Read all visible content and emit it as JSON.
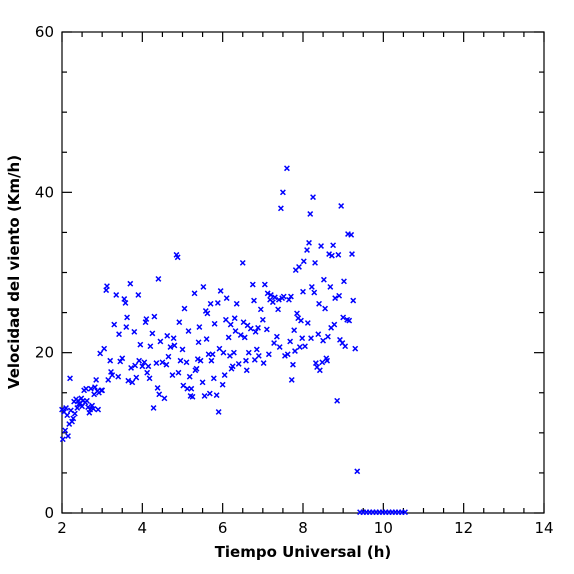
{
  "chart_data": {
    "type": "scatter",
    "xlabel": "Tiempo Universal (h)",
    "ylabel": "Velocidad del viento (Km/h)",
    "xlim": [
      2,
      14
    ],
    "ylim": [
      0,
      60
    ],
    "x_ticks": [
      2,
      4,
      6,
      8,
      10,
      12,
      14
    ],
    "y_ticks": [
      0,
      20,
      40,
      60
    ],
    "x_tick_labels": [
      "2",
      "4",
      "6",
      "8",
      "10",
      "12",
      "14"
    ],
    "y_tick_labels": [
      "0",
      "20",
      "40",
      "60"
    ],
    "grid": false,
    "marker": "x",
    "color": "#0000ff",
    "series": [
      {
        "points": [
          [
            2.0,
            12.9
          ],
          [
            2.02,
            9.2
          ],
          [
            2.05,
            12.6
          ],
          [
            2.08,
            10.3
          ],
          [
            2.1,
            13.1
          ],
          [
            2.13,
            12.2
          ],
          [
            2.15,
            9.6
          ],
          [
            2.18,
            11.1
          ],
          [
            2.2,
            16.8
          ],
          [
            2.22,
            12.8
          ],
          [
            2.25,
            11.4
          ],
          [
            2.28,
            11.8
          ],
          [
            2.3,
            13.9
          ],
          [
            2.32,
            12.4
          ],
          [
            2.35,
            14.2
          ],
          [
            2.38,
            13.1
          ],
          [
            2.4,
            14.0
          ],
          [
            2.42,
            13.6
          ],
          [
            2.45,
            13.7
          ],
          [
            2.48,
            14.3
          ],
          [
            2.5,
            13.3
          ],
          [
            2.52,
            14.0
          ],
          [
            2.55,
            15.3
          ],
          [
            2.58,
            13.8
          ],
          [
            2.6,
            15.5
          ],
          [
            2.62,
            14.0
          ],
          [
            2.65,
            13.2
          ],
          [
            2.68,
            12.5
          ],
          [
            2.7,
            12.9
          ],
          [
            2.72,
            15.5
          ],
          [
            2.75,
            13.4
          ],
          [
            2.78,
            13.0
          ],
          [
            2.8,
            14.8
          ],
          [
            2.82,
            15.7
          ],
          [
            2.85,
            16.6
          ],
          [
            2.88,
            15.2
          ],
          [
            2.9,
            12.9
          ],
          [
            2.92,
            15.0
          ],
          [
            2.95,
            19.9
          ],
          [
            2.98,
            15.3
          ],
          [
            3.0,
            15.3
          ],
          [
            3.05,
            20.5
          ],
          [
            3.1,
            27.8
          ],
          [
            3.12,
            28.3
          ],
          [
            3.15,
            16.6
          ],
          [
            3.2,
            19.0
          ],
          [
            3.22,
            17.6
          ],
          [
            3.25,
            17.2
          ],
          [
            3.3,
            23.5
          ],
          [
            3.35,
            27.2
          ],
          [
            3.4,
            17.0
          ],
          [
            3.42,
            22.3
          ],
          [
            3.45,
            18.9
          ],
          [
            3.5,
            19.3
          ],
          [
            3.55,
            26.7
          ],
          [
            3.58,
            26.2
          ],
          [
            3.6,
            23.2
          ],
          [
            3.62,
            24.4
          ],
          [
            3.65,
            16.5
          ],
          [
            3.7,
            28.6
          ],
          [
            3.72,
            18.1
          ],
          [
            3.75,
            16.3
          ],
          [
            3.8,
            22.6
          ],
          [
            3.82,
            18.4
          ],
          [
            3.85,
            16.9
          ],
          [
            3.9,
            27.2
          ],
          [
            3.92,
            19.0
          ],
          [
            3.95,
            21.0
          ],
          [
            4.0,
            18.3
          ],
          [
            4.05,
            18.8
          ],
          [
            4.08,
            23.8
          ],
          [
            4.1,
            24.2
          ],
          [
            4.12,
            17.5
          ],
          [
            4.15,
            18.3
          ],
          [
            4.18,
            16.8
          ],
          [
            4.2,
            20.8
          ],
          [
            4.25,
            22.4
          ],
          [
            4.28,
            13.1
          ],
          [
            4.3,
            24.5
          ],
          [
            4.35,
            18.7
          ],
          [
            4.38,
            15.6
          ],
          [
            4.4,
            29.2
          ],
          [
            4.42,
            14.8
          ],
          [
            4.45,
            21.4
          ],
          [
            4.5,
            18.8
          ],
          [
            4.55,
            14.3
          ],
          [
            4.6,
            18.5
          ],
          [
            4.62,
            22.1
          ],
          [
            4.65,
            19.5
          ],
          [
            4.7,
            20.7
          ],
          [
            4.75,
            17.2
          ],
          [
            4.78,
            21.8
          ],
          [
            4.8,
            20.9
          ],
          [
            4.85,
            32.2
          ],
          [
            4.88,
            31.9
          ],
          [
            4.9,
            17.5
          ],
          [
            4.92,
            23.8
          ],
          [
            4.95,
            19.0
          ],
          [
            5.0,
            20.4
          ],
          [
            5.02,
            15.9
          ],
          [
            5.05,
            25.5
          ],
          [
            5.1,
            18.8
          ],
          [
            5.12,
            15.5
          ],
          [
            5.15,
            22.7
          ],
          [
            5.18,
            17.0
          ],
          [
            5.2,
            14.6
          ],
          [
            5.22,
            15.5
          ],
          [
            5.25,
            14.5
          ],
          [
            5.3,
            27.4
          ],
          [
            5.32,
            17.8
          ],
          [
            5.35,
            18.0
          ],
          [
            5.38,
            19.2
          ],
          [
            5.4,
            21.3
          ],
          [
            5.42,
            23.2
          ],
          [
            5.45,
            19.0
          ],
          [
            5.5,
            16.3
          ],
          [
            5.52,
            28.2
          ],
          [
            5.55,
            14.6
          ],
          [
            5.58,
            25.2
          ],
          [
            5.6,
            21.7
          ],
          [
            5.62,
            24.9
          ],
          [
            5.65,
            19.8
          ],
          [
            5.68,
            14.9
          ],
          [
            5.7,
            26.1
          ],
          [
            5.72,
            19.0
          ],
          [
            5.75,
            19.8
          ],
          [
            5.78,
            16.8
          ],
          [
            5.8,
            23.6
          ],
          [
            5.85,
            14.7
          ],
          [
            5.88,
            26.2
          ],
          [
            5.9,
            12.6
          ],
          [
            5.92,
            20.5
          ],
          [
            5.95,
            27.7
          ],
          [
            6.0,
            16.0
          ],
          [
            6.02,
            20.0
          ],
          [
            6.05,
            17.2
          ],
          [
            6.08,
            24.1
          ],
          [
            6.1,
            26.8
          ],
          [
            6.15,
            21.9
          ],
          [
            6.18,
            19.6
          ],
          [
            6.2,
            23.5
          ],
          [
            6.22,
            18.0
          ],
          [
            6.25,
            18.3
          ],
          [
            6.28,
            20.0
          ],
          [
            6.3,
            24.3
          ],
          [
            6.32,
            22.7
          ],
          [
            6.35,
            26.1
          ],
          [
            6.4,
            18.6
          ],
          [
            6.45,
            22.2
          ],
          [
            6.5,
            31.2
          ],
          [
            6.52,
            23.8
          ],
          [
            6.55,
            21.9
          ],
          [
            6.58,
            19.0
          ],
          [
            6.6,
            17.8
          ],
          [
            6.62,
            23.4
          ],
          [
            6.65,
            20.0
          ],
          [
            6.7,
            23.0
          ],
          [
            6.75,
            28.5
          ],
          [
            6.78,
            26.5
          ],
          [
            6.8,
            19.1
          ],
          [
            6.82,
            22.6
          ],
          [
            6.85,
            20.4
          ],
          [
            6.88,
            23.1
          ],
          [
            6.9,
            19.6
          ],
          [
            6.95,
            25.4
          ],
          [
            7.0,
            24.1
          ],
          [
            7.02,
            18.7
          ],
          [
            7.05,
            28.5
          ],
          [
            7.1,
            22.9
          ],
          [
            7.12,
            27.4
          ],
          [
            7.15,
            19.8
          ],
          [
            7.18,
            26.6
          ],
          [
            7.2,
            27.2
          ],
          [
            7.25,
            26.3
          ],
          [
            7.28,
            21.2
          ],
          [
            7.3,
            26.9
          ],
          [
            7.35,
            22.0
          ],
          [
            7.38,
            25.4
          ],
          [
            7.4,
            26.6
          ],
          [
            7.42,
            20.7
          ],
          [
            7.45,
            38.0
          ],
          [
            7.48,
            26.8
          ],
          [
            7.5,
            40.0
          ],
          [
            7.52,
            27.0
          ],
          [
            7.55,
            19.6
          ],
          [
            7.6,
            43.0
          ],
          [
            7.62,
            19.8
          ],
          [
            7.65,
            26.6
          ],
          [
            7.68,
            21.4
          ],
          [
            7.7,
            27.0
          ],
          [
            7.72,
            16.6
          ],
          [
            7.75,
            18.5
          ],
          [
            7.78,
            22.8
          ],
          [
            7.8,
            20.2
          ],
          [
            7.82,
            30.3
          ],
          [
            7.85,
            24.9
          ],
          [
            7.88,
            24.3
          ],
          [
            7.9,
            30.7
          ],
          [
            7.92,
            20.7
          ],
          [
            7.95,
            24.0
          ],
          [
            7.98,
            21.8
          ],
          [
            8.0,
            27.6
          ],
          [
            8.02,
            31.4
          ],
          [
            8.05,
            20.8
          ],
          [
            8.1,
            32.8
          ],
          [
            8.12,
            23.7
          ],
          [
            8.15,
            33.7
          ],
          [
            8.18,
            37.3
          ],
          [
            8.2,
            21.8
          ],
          [
            8.22,
            28.2
          ],
          [
            8.25,
            39.4
          ],
          [
            8.28,
            27.5
          ],
          [
            8.3,
            31.2
          ],
          [
            8.32,
            18.7
          ],
          [
            8.35,
            18.2
          ],
          [
            8.38,
            22.3
          ],
          [
            8.4,
            26.1
          ],
          [
            8.42,
            17.8
          ],
          [
            8.45,
            33.3
          ],
          [
            8.48,
            18.8
          ],
          [
            8.5,
            21.5
          ],
          [
            8.52,
            29.1
          ],
          [
            8.55,
            25.5
          ],
          [
            8.58,
            19.3
          ],
          [
            8.6,
            19.0
          ],
          [
            8.62,
            22.0
          ],
          [
            8.65,
            32.3
          ],
          [
            8.68,
            28.2
          ],
          [
            8.7,
            23.1
          ],
          [
            8.72,
            32.1
          ],
          [
            8.75,
            33.4
          ],
          [
            8.78,
            23.5
          ],
          [
            8.8,
            26.8
          ],
          [
            8.85,
            14.0
          ],
          [
            8.88,
            32.2
          ],
          [
            8.9,
            27.1
          ],
          [
            8.92,
            21.6
          ],
          [
            8.95,
            38.3
          ],
          [
            8.98,
            21.2
          ],
          [
            9.0,
            24.4
          ],
          [
            9.02,
            28.9
          ],
          [
            9.05,
            20.8
          ],
          [
            9.1,
            24.1
          ],
          [
            9.12,
            34.8
          ],
          [
            9.15,
            24.0
          ],
          [
            9.2,
            34.7
          ],
          [
            9.22,
            32.3
          ],
          [
            9.25,
            26.5
          ],
          [
            9.3,
            20.5
          ],
          [
            9.35,
            5.2
          ]
        ]
      },
      {
        "points": [
          [
            9.42,
            0.1
          ],
          [
            9.5,
            0.1
          ],
          [
            9.58,
            0.1
          ],
          [
            9.66,
            0.1
          ],
          [
            9.74,
            0.1
          ],
          [
            9.82,
            0.1
          ],
          [
            9.9,
            0.1
          ],
          [
            9.98,
            0.1
          ],
          [
            10.06,
            0.1
          ],
          [
            10.14,
            0.1
          ],
          [
            10.22,
            0.1
          ],
          [
            10.3,
            0.1
          ],
          [
            10.38,
            0.1
          ],
          [
            10.46,
            0.1
          ],
          [
            10.54,
            0.1
          ]
        ]
      }
    ]
  }
}
